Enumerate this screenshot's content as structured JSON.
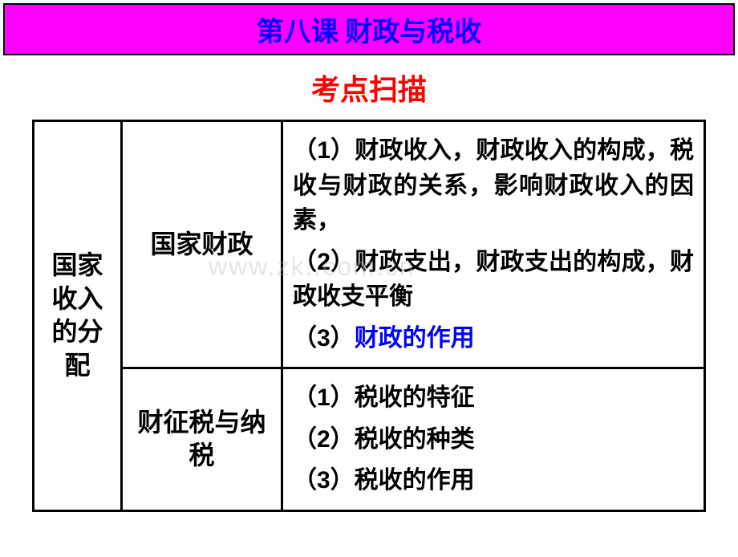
{
  "header": {
    "title": "第八课 财政与税收",
    "subtitle": "考点扫描"
  },
  "watermark": "www.zk..com.cn",
  "colors": {
    "title_bg": "#ff00ff",
    "title_text": "#0000ff",
    "subtitle_text": "#ff0000",
    "border": "#000000",
    "highlight": "#0000ff",
    "body_text": "#000000",
    "page_bg": "#ffffff"
  },
  "table": {
    "col1": "国家收入的分配",
    "rows": [
      {
        "col2": "国家财政",
        "col3_lines": [
          {
            "text": "（1）财政收入，财政收入的构成，税收与财政的关系，影响财政收入的因素，",
            "color": "#000000"
          },
          {
            "text": "（2）财政支出，财政支出的构成，财政收支平衡",
            "color": "#000000"
          },
          {
            "text": "（3）",
            "color": "#000000",
            "suffix": "财政的作用",
            "suffix_color": "#0000ff"
          }
        ]
      },
      {
        "col2": "财征税与纳税",
        "col3_lines": [
          {
            "text": "（1）税收的特征",
            "color": "#000000"
          },
          {
            "text": "（2）税收的种类",
            "color": "#000000"
          },
          {
            "text": "（3）税收的作用",
            "color": "#000000"
          }
        ]
      }
    ]
  }
}
